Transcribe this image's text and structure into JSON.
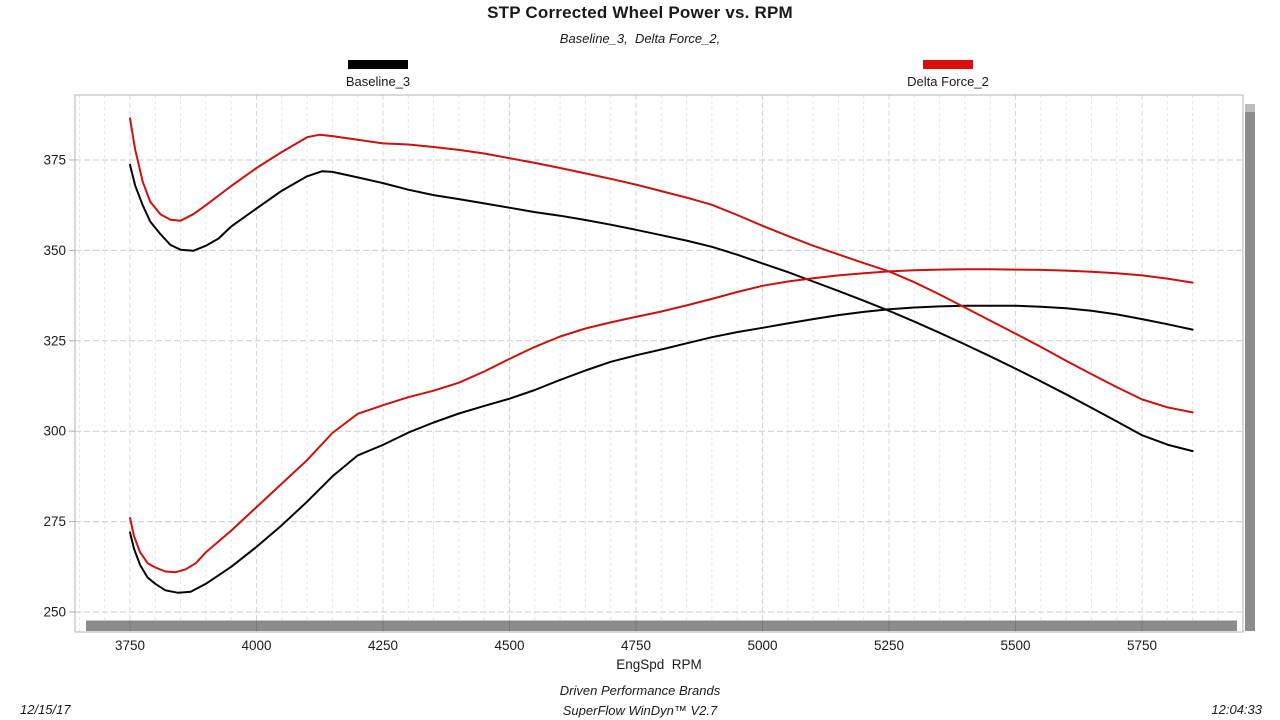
{
  "header": {
    "title": "STP Corrected Wheel Power vs. RPM",
    "subtitle": "Baseline_3,  Delta Force_2,"
  },
  "legend": [
    {
      "label": "Baseline_3",
      "color": "#000000"
    },
    {
      "label": "Delta Force_2",
      "color": "#dd0d0d"
    }
  ],
  "footer": {
    "date": "12/15/17",
    "time": "12:04:33",
    "brand": "Driven Performance Brands",
    "software": "SuperFlow WinDyn™ V2.7"
  },
  "chart_data": {
    "type": "line",
    "title": "STP Corrected Wheel Power vs. RPM",
    "subtitle": "Baseline_3,  Delta Force_2,",
    "xlabel": "EngSpd  RPM",
    "ylabel": "",
    "xlim": [
      3641,
      5948
    ],
    "ylim": [
      245,
      393
    ],
    "x_ticks": [
      3750,
      4000,
      4250,
      4500,
      4750,
      5000,
      5250,
      5500,
      5750
    ],
    "x_minor_step": 50,
    "y_ticks": [
      250,
      275,
      300,
      325,
      350,
      375
    ],
    "grid": true,
    "legend_position": "top",
    "colors": {
      "grid_minor": "#e4e4e4",
      "grid_major": "#d4d4d4",
      "grid_h": "#cccccc",
      "border": "#b3b3b3",
      "scrollbar": "#8c8c8c",
      "scrollbar_cap": "#bdbdbd",
      "tick_text": "#1a1a1a"
    },
    "series": [
      {
        "name": "Baseline_3",
        "curve": "upper",
        "color": "#050505",
        "points": [
          [
            3750,
            373.7
          ],
          [
            3760,
            368
          ],
          [
            3775,
            362.5
          ],
          [
            3790,
            358
          ],
          [
            3810,
            354.5
          ],
          [
            3830,
            351.5
          ],
          [
            3850,
            350.2
          ],
          [
            3875,
            349.9
          ],
          [
            3900,
            351.3
          ],
          [
            3925,
            353.3
          ],
          [
            3950,
            356.6
          ],
          [
            4000,
            361.6
          ],
          [
            4050,
            366.5
          ],
          [
            4100,
            370.5
          ],
          [
            4130,
            371.9
          ],
          [
            4150,
            371.7
          ],
          [
            4200,
            370.2
          ],
          [
            4250,
            368.6
          ],
          [
            4300,
            366.8
          ],
          [
            4350,
            365.3
          ],
          [
            4400,
            364.2
          ],
          [
            4450,
            363
          ],
          [
            4500,
            361.8
          ],
          [
            4550,
            360.6
          ],
          [
            4600,
            359.6
          ],
          [
            4650,
            358.4
          ],
          [
            4700,
            357.1
          ],
          [
            4750,
            355.7
          ],
          [
            4800,
            354.2
          ],
          [
            4850,
            352.7
          ],
          [
            4900,
            351
          ],
          [
            4950,
            348.8
          ],
          [
            5000,
            346.4
          ],
          [
            5050,
            344
          ],
          [
            5100,
            341.4
          ],
          [
            5150,
            338.8
          ],
          [
            5200,
            336.1
          ],
          [
            5250,
            333.3
          ],
          [
            5300,
            330.3
          ],
          [
            5350,
            327.2
          ],
          [
            5400,
            324
          ],
          [
            5450,
            320.7
          ],
          [
            5500,
            317.3
          ],
          [
            5550,
            313.8
          ],
          [
            5600,
            310.2
          ],
          [
            5650,
            306.5
          ],
          [
            5700,
            302.7
          ],
          [
            5750,
            298.9
          ],
          [
            5800,
            296.3
          ],
          [
            5850,
            294.5
          ]
        ]
      },
      {
        "name": "Baseline_3",
        "curve": "lower",
        "color": "#050505",
        "points": [
          [
            3750,
            272
          ],
          [
            3758,
            267.5
          ],
          [
            3770,
            263
          ],
          [
            3785,
            259.5
          ],
          [
            3800,
            257.8
          ],
          [
            3820,
            256
          ],
          [
            3845,
            255.3
          ],
          [
            3870,
            255.6
          ],
          [
            3900,
            257.8
          ],
          [
            3950,
            262.5
          ],
          [
            4000,
            268
          ],
          [
            4050,
            274
          ],
          [
            4100,
            280.5
          ],
          [
            4150,
            287.5
          ],
          [
            4200,
            293.3
          ],
          [
            4250,
            296.2
          ],
          [
            4300,
            299.6
          ],
          [
            4350,
            302.4
          ],
          [
            4400,
            304.9
          ],
          [
            4450,
            307
          ],
          [
            4500,
            309
          ],
          [
            4550,
            311.4
          ],
          [
            4600,
            314.2
          ],
          [
            4650,
            316.8
          ],
          [
            4700,
            319.2
          ],
          [
            4750,
            321
          ],
          [
            4800,
            322.6
          ],
          [
            4850,
            324.3
          ],
          [
            4900,
            326
          ],
          [
            4950,
            327.4
          ],
          [
            5000,
            328.6
          ],
          [
            5050,
            329.8
          ],
          [
            5100,
            331
          ],
          [
            5150,
            332.1
          ],
          [
            5200,
            333
          ],
          [
            5250,
            333.7
          ],
          [
            5300,
            334.2
          ],
          [
            5350,
            334.5
          ],
          [
            5400,
            334.7
          ],
          [
            5450,
            334.7
          ],
          [
            5500,
            334.7
          ],
          [
            5550,
            334.4
          ],
          [
            5600,
            334
          ],
          [
            5650,
            333.3
          ],
          [
            5700,
            332.3
          ],
          [
            5750,
            331
          ],
          [
            5800,
            329.6
          ],
          [
            5850,
            328.1
          ]
        ]
      },
      {
        "name": "Delta Force_2",
        "curve": "upper",
        "color": "#cc1010",
        "points": [
          [
            3750,
            386.5
          ],
          [
            3760,
            378
          ],
          [
            3775,
            369
          ],
          [
            3790,
            363.5
          ],
          [
            3810,
            360
          ],
          [
            3830,
            358.5
          ],
          [
            3850,
            358.2
          ],
          [
            3875,
            360
          ],
          [
            3900,
            362.5
          ],
          [
            3950,
            367.8
          ],
          [
            4000,
            372.8
          ],
          [
            4050,
            377.2
          ],
          [
            4100,
            381.3
          ],
          [
            4125,
            382
          ],
          [
            4150,
            381.6
          ],
          [
            4200,
            380.6
          ],
          [
            4250,
            379.6
          ],
          [
            4300,
            379.3
          ],
          [
            4350,
            378.6
          ],
          [
            4400,
            377.8
          ],
          [
            4450,
            376.8
          ],
          [
            4500,
            375.5
          ],
          [
            4550,
            374.2
          ],
          [
            4600,
            372.8
          ],
          [
            4650,
            371.3
          ],
          [
            4700,
            369.8
          ],
          [
            4750,
            368.2
          ],
          [
            4800,
            366.4
          ],
          [
            4850,
            364.6
          ],
          [
            4900,
            362.6
          ],
          [
            4950,
            359.8
          ],
          [
            5000,
            356.8
          ],
          [
            5050,
            354
          ],
          [
            5100,
            351.3
          ],
          [
            5150,
            348.9
          ],
          [
            5200,
            346.5
          ],
          [
            5250,
            344.2
          ],
          [
            5300,
            341.2
          ],
          [
            5350,
            337.8
          ],
          [
            5400,
            334.2
          ],
          [
            5450,
            330.6
          ],
          [
            5500,
            327
          ],
          [
            5550,
            323.3
          ],
          [
            5600,
            319.5
          ],
          [
            5650,
            315.8
          ],
          [
            5700,
            312.2
          ],
          [
            5750,
            308.8
          ],
          [
            5800,
            306.6
          ],
          [
            5850,
            305.2
          ]
        ]
      },
      {
        "name": "Delta Force_2",
        "curve": "lower",
        "color": "#cc1010",
        "points": [
          [
            3750,
            276
          ],
          [
            3758,
            271
          ],
          [
            3770,
            266.5
          ],
          [
            3785,
            263.5
          ],
          [
            3800,
            262.3
          ],
          [
            3820,
            261.2
          ],
          [
            3840,
            261
          ],
          [
            3860,
            261.8
          ],
          [
            3880,
            263.5
          ],
          [
            3900,
            266.5
          ],
          [
            3950,
            272.5
          ],
          [
            4000,
            279
          ],
          [
            4050,
            285.5
          ],
          [
            4100,
            292
          ],
          [
            4150,
            299.5
          ],
          [
            4200,
            304.8
          ],
          [
            4250,
            307.2
          ],
          [
            4300,
            309.4
          ],
          [
            4350,
            311.2
          ],
          [
            4400,
            313.4
          ],
          [
            4450,
            316.5
          ],
          [
            4500,
            320
          ],
          [
            4550,
            323.3
          ],
          [
            4600,
            326.2
          ],
          [
            4650,
            328.4
          ],
          [
            4700,
            330.1
          ],
          [
            4750,
            331.6
          ],
          [
            4800,
            333.1
          ],
          [
            4850,
            334.8
          ],
          [
            4900,
            336.6
          ],
          [
            4950,
            338.5
          ],
          [
            5000,
            340.2
          ],
          [
            5050,
            341.4
          ],
          [
            5100,
            342.3
          ],
          [
            5150,
            343.1
          ],
          [
            5200,
            343.7
          ],
          [
            5250,
            344.2
          ],
          [
            5300,
            344.5
          ],
          [
            5350,
            344.7
          ],
          [
            5400,
            344.8
          ],
          [
            5450,
            344.8
          ],
          [
            5500,
            344.7
          ],
          [
            5550,
            344.6
          ],
          [
            5600,
            344.4
          ],
          [
            5650,
            344.1
          ],
          [
            5700,
            343.7
          ],
          [
            5750,
            343.1
          ],
          [
            5800,
            342.2
          ],
          [
            5850,
            341.1
          ]
        ]
      }
    ]
  }
}
